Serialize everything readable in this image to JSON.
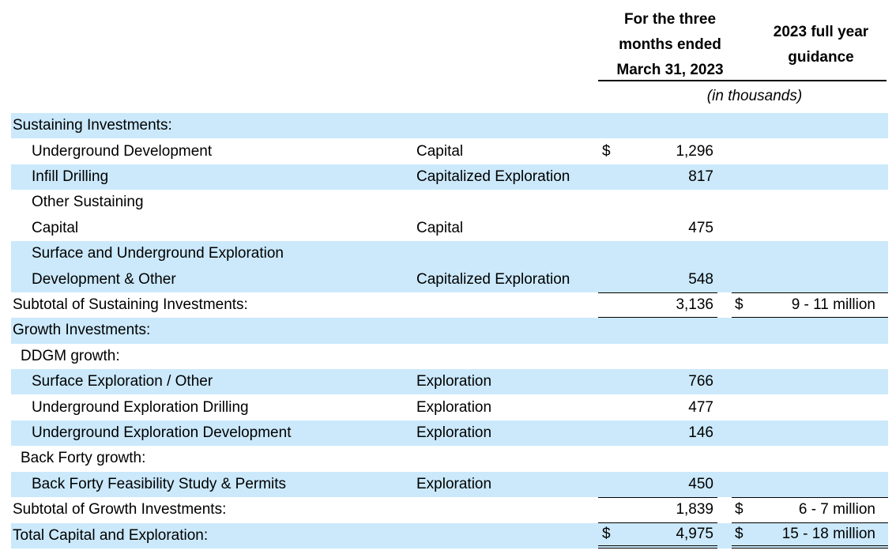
{
  "colors": {
    "band_blue": "#cbe9fb",
    "text": "#000000",
    "rule": "#000000"
  },
  "header": {
    "period_lines": [
      "For the three",
      "months ended",
      "March 31, 2023"
    ],
    "period_text": "For the three months ended March 31, 2023",
    "guidance_lines": [
      "2023 full year",
      "guidance"
    ],
    "guidance_text": "2023 full year guidance",
    "units_note": "(in thousands)"
  },
  "table": {
    "rows": [
      {
        "label": "Sustaining Investments:",
        "indent": 0,
        "type": "",
        "d1": "",
        "amount": "",
        "rule3": "",
        "d2": "",
        "guidance": "",
        "rule4": "",
        "shade": true
      },
      {
        "label": "Underground Development",
        "indent": 2,
        "type": "Capital",
        "d1": "$",
        "amount": "1,296",
        "rule3": "",
        "d2": "",
        "guidance": "",
        "rule4": "",
        "shade": false
      },
      {
        "label": "Infill Drilling",
        "indent": 2,
        "type": "Capitalized Exploration",
        "d1": "",
        "amount": "817",
        "rule3": "",
        "d2": "",
        "guidance": "",
        "rule4": "",
        "shade": true
      },
      {
        "label": "Other Sustaining",
        "indent": 2,
        "type": "",
        "d1": "",
        "amount": "",
        "rule3": "",
        "d2": "",
        "guidance": "",
        "rule4": "",
        "shade": false
      },
      {
        "label": "Capital",
        "indent": 2,
        "type": "Capital",
        "d1": "",
        "amount": "475",
        "rule3": "",
        "d2": "",
        "guidance": "",
        "rule4": "",
        "shade": false
      },
      {
        "label": "Surface and Underground Exploration",
        "indent": 2,
        "type": "",
        "d1": "",
        "amount": "",
        "rule3": "",
        "d2": "",
        "guidance": "",
        "rule4": "",
        "shade": true
      },
      {
        "label": "Development & Other",
        "indent": 2,
        "type": "Capitalized Exploration",
        "d1": "",
        "amount": "548",
        "rule3": "",
        "d2": "",
        "guidance": "",
        "rule4": "",
        "shade": true
      },
      {
        "label": "Subtotal of Sustaining Investments:",
        "indent": 0,
        "type": "",
        "d1": "",
        "amount": "3,136",
        "rule3": "tb",
        "d2": "$",
        "guidance": "9 - 11 million",
        "rule4": "tb",
        "shade": false
      },
      {
        "label": "Growth Investments:",
        "indent": 0,
        "type": "",
        "d1": "",
        "amount": "",
        "rule3": "",
        "d2": "",
        "guidance": "",
        "rule4": "",
        "shade": true
      },
      {
        "label": "DDGM growth:",
        "indent": 1,
        "type": "",
        "d1": "",
        "amount": "",
        "rule3": "",
        "d2": "",
        "guidance": "",
        "rule4": "",
        "shade": false
      },
      {
        "label": "Surface Exploration / Other",
        "indent": 2,
        "type": "Exploration",
        "d1": "",
        "amount": "766",
        "rule3": "",
        "d2": "",
        "guidance": "",
        "rule4": "",
        "shade": true
      },
      {
        "label": "Underground Exploration Drilling",
        "indent": 2,
        "type": "Exploration",
        "d1": "",
        "amount": "477",
        "rule3": "",
        "d2": "",
        "guidance": "",
        "rule4": "",
        "shade": false
      },
      {
        "label": "Underground Exploration Development",
        "indent": 2,
        "type": "Exploration",
        "d1": "",
        "amount": "146",
        "rule3": "",
        "d2": "",
        "guidance": "",
        "rule4": "",
        "shade": true
      },
      {
        "label": "Back Forty growth:",
        "indent": 1,
        "type": "",
        "d1": "",
        "amount": "",
        "rule3": "",
        "d2": "",
        "guidance": "",
        "rule4": "",
        "shade": false
      },
      {
        "label": "Back Forty Feasibility Study & Permits",
        "indent": 2,
        "type": "Exploration",
        "d1": "",
        "amount": "450",
        "rule3": "",
        "d2": "",
        "guidance": "",
        "rule4": "",
        "shade": true
      },
      {
        "label": "Subtotal of Growth Investments:",
        "indent": 0,
        "type": "",
        "d1": "",
        "amount": "1,839",
        "rule3": "tb",
        "d2": "$",
        "guidance": "6 - 7 million",
        "rule4": "tb",
        "shade": false
      },
      {
        "label": "Total Capital and Exploration:",
        "indent": 0,
        "type": "",
        "d1": "$",
        "amount": "4,975",
        "rule3": "db",
        "d2": "$",
        "guidance": "15 - 18 million",
        "rule4": "db",
        "shade": true
      }
    ]
  }
}
